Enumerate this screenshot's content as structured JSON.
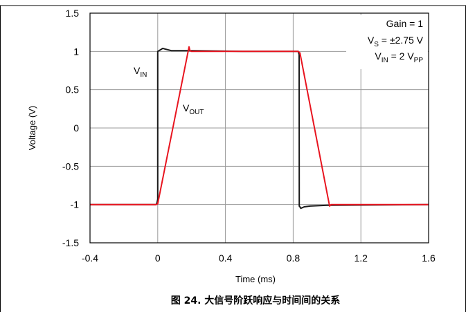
{
  "chart_data": {
    "type": "line",
    "xlabel": "Time (ms)",
    "ylabel": "Voltage (V)",
    "xlim": [
      -0.4,
      1.6
    ],
    "ylim": [
      -1.5,
      1.5
    ],
    "x_ticks": [
      "-0.4",
      "0",
      "0.4",
      "0.8",
      "1.2",
      "1.6"
    ],
    "y_ticks": [
      "1.5",
      "1",
      "0.5",
      "0",
      "-0.5",
      "-1",
      "-1.5"
    ],
    "grid": true,
    "series": [
      {
        "name": "V_IN",
        "color": "#1a1a1a",
        "x": [
          -0.4,
          -0.01,
          -0.005,
          0.0,
          0.0,
          0.015,
          0.03,
          0.045,
          0.08,
          0.2,
          0.5,
          0.83,
          0.835,
          0.836,
          0.84,
          0.845,
          0.865,
          0.9,
          1.0,
          1.6
        ],
        "y": [
          -1.0,
          -1.0,
          -0.98,
          -0.93,
          1.0,
          1.02,
          1.04,
          1.03,
          1.01,
          1.01,
          1.0,
          1.0,
          0.96,
          -1.02,
          -1.03,
          -1.05,
          -1.03,
          -1.02,
          -1.01,
          -1.0
        ]
      },
      {
        "name": "V_OUT",
        "color": "#e8141f",
        "x": [
          -0.4,
          -0.01,
          0.0,
          0.185,
          0.19,
          0.2,
          0.5,
          0.83,
          0.84,
          1.015,
          1.025,
          1.1,
          1.6
        ],
        "y": [
          -1.0,
          -1.0,
          -0.99,
          1.06,
          1.01,
          1.0,
          1.0,
          1.0,
          0.98,
          -1.02,
          -1.0,
          -1.0,
          -1.0
        ]
      }
    ],
    "annotations": {
      "gain": "Gain = 1",
      "vs_main": "V",
      "vs_sub": "S",
      "vs_value": " = ±2.75 V",
      "vin_main": "V",
      "vin_sub": "IN",
      "vin_eq": " = 2 V",
      "vin_unit_sub": "PP",
      "label_vin_main": "V",
      "label_vin_sub": "IN",
      "label_vout_main": "V",
      "label_vout_sub": "OUT"
    },
    "caption": "图 24. 大信号阶跃响应与时间间的关系"
  }
}
